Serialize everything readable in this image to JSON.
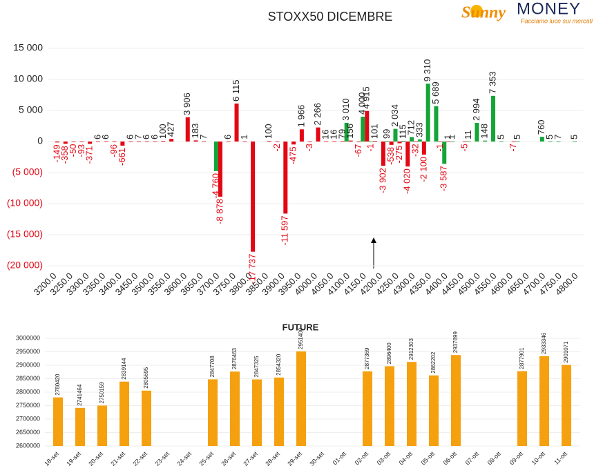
{
  "chart_data": [
    {
      "type": "bar",
      "title": "STOXX50 DICEMBRE",
      "categories": [
        "3200.0",
        null,
        "3250.0",
        null,
        "3300.0",
        null,
        "3350.0",
        null,
        "3400.0",
        null,
        "3450.0",
        null,
        "3500.0",
        null,
        "3550.0",
        null,
        "3600.0",
        null,
        "3650.0",
        null,
        "3700.0",
        null,
        "3750.0",
        null,
        "3800.0",
        null,
        "3850.0",
        null,
        "3900.0",
        null,
        "3950.0",
        null,
        "4000.0",
        null,
        "4050.0",
        null,
        "4100.0",
        null,
        "4150.0",
        null,
        "4200.0",
        null,
        "4250.0",
        null,
        "4300.0",
        null,
        "4350.0",
        null,
        "4400.0",
        null,
        "4450.0",
        null,
        "4500.0",
        null,
        "4550.0",
        null,
        "4600.0",
        null,
        "4650.0",
        null,
        "4700.0",
        null,
        "4750.0",
        null,
        "4800.0"
      ],
      "series": [
        {
          "color": "#13a538",
          "values": [
            null,
            null,
            null,
            null,
            null,
            null,
            null,
            null,
            null,
            null,
            null,
            null,
            null,
            null,
            null,
            null,
            null,
            null,
            null,
            null,
            -4760,
            null,
            null,
            null,
            null,
            null,
            null,
            null,
            null,
            null,
            null,
            null,
            null,
            null,
            null,
            null,
            3010,
            null,
            4000,
            -1,
            null,
            99,
            2034,
            115,
            712,
            333,
            9310,
            5689,
            -3587,
            1,
            null,
            11,
            2994,
            148,
            7353,
            5,
            null,
            5,
            null,
            null,
            760,
            5,
            7,
            null,
            5
          ],
          "value_labels": [
            null,
            null,
            null,
            null,
            null,
            null,
            null,
            null,
            null,
            null,
            null,
            null,
            null,
            null,
            null,
            null,
            null,
            null,
            null,
            null,
            "-4 760",
            null,
            null,
            null,
            null,
            null,
            null,
            null,
            null,
            null,
            null,
            null,
            null,
            null,
            null,
            null,
            "3 010",
            null,
            "4 000",
            null,
            null,
            null,
            "2 034",
            null,
            null,
            null,
            "9 310",
            "5 689",
            "-3 587",
            null,
            null,
            null,
            "2 994",
            null,
            "7 353",
            null,
            null,
            null,
            null,
            null,
            null,
            null,
            null,
            null,
            null
          ]
        },
        {
          "color": "#e30613",
          "values": [
            -149,
            -358,
            -50,
            -93,
            -371,
            6,
            6,
            -96,
            -661,
            6,
            7,
            6,
            6,
            100,
            427,
            null,
            3906,
            183,
            7,
            null,
            -8878,
            6,
            6115,
            1,
            -17737,
            null,
            100,
            -2,
            -11597,
            -475,
            1966,
            -3,
            2266,
            16,
            16,
            79,
            156,
            -67,
            4915,
            101,
            -3902,
            -538,
            -275,
            -4020,
            -32,
            -2100,
            null,
            -1,
            1,
            null,
            -5,
            null,
            null,
            null,
            null,
            null,
            -7,
            null,
            null,
            null,
            null,
            null,
            null,
            null,
            null
          ],
          "value_labels": [
            null,
            null,
            null,
            null,
            null,
            null,
            null,
            null,
            null,
            null,
            null,
            null,
            null,
            null,
            null,
            null,
            "3 906",
            null,
            null,
            null,
            "-8 878",
            null,
            "6 115",
            null,
            "-17 737",
            null,
            null,
            null,
            "-11 597",
            null,
            "1 966",
            null,
            "2 266",
            null,
            null,
            null,
            null,
            null,
            "4 915",
            null,
            "-3 902",
            null,
            null,
            "-4 020",
            null,
            "-2 100",
            null,
            null,
            null,
            null,
            null,
            null,
            null,
            null,
            null,
            null,
            null,
            null,
            null,
            null,
            null,
            null,
            null,
            null,
            null
          ]
        }
      ],
      "ylim": [
        -20000,
        15000
      ],
      "yticks": [
        {
          "value": 15000,
          "label": "15 000"
        },
        {
          "value": 10000,
          "label": "10 000"
        },
        {
          "value": 5000,
          "label": "5 000"
        },
        0,
        {
          "value": -5000,
          "label": "(5 000)"
        },
        {
          "value": -10000,
          "label": "(10 000)"
        },
        {
          "value": -15000,
          "label": "(15 000)"
        },
        {
          "value": -20000,
          "label": "(20 000)"
        }
      ],
      "grid": true
    },
    {
      "type": "bar",
      "title": "FUTURE",
      "categories": [
        "18-set",
        "19-set",
        "20-set",
        "21-set",
        "22-set",
        "23-set",
        "24-set",
        "25-set",
        "26-set",
        "27-set",
        "28-set",
        "29-set",
        "30-set",
        "01-ott",
        "02-ott",
        "03-ott",
        "04-ott",
        "05-ott",
        "06-ott",
        "07-ott",
        "08-ott",
        "09-ott",
        "10-ott",
        "11-ott"
      ],
      "values": [
        2780420,
        2741464,
        2750159,
        2839144,
        2805695,
        null,
        null,
        2847708,
        2876463,
        2847325,
        2854320,
        2951400,
        null,
        null,
        2877369,
        2896400,
        2912303,
        2862202,
        2937899,
        null,
        null,
        2877901,
        2933346,
        2901071
      ],
      "color": "#f5a00f",
      "ylim": [
        2600000,
        3000000
      ],
      "yticks": [
        2600000,
        2650000,
        2700000,
        2750000,
        2800000,
        2850000,
        2900000,
        2950000,
        3000000
      ],
      "grid": true
    }
  ],
  "logo": {
    "brand_a": "Sunny",
    "brand_b": "MONEY",
    "tagline": "Facciamo luce sui mercati"
  }
}
